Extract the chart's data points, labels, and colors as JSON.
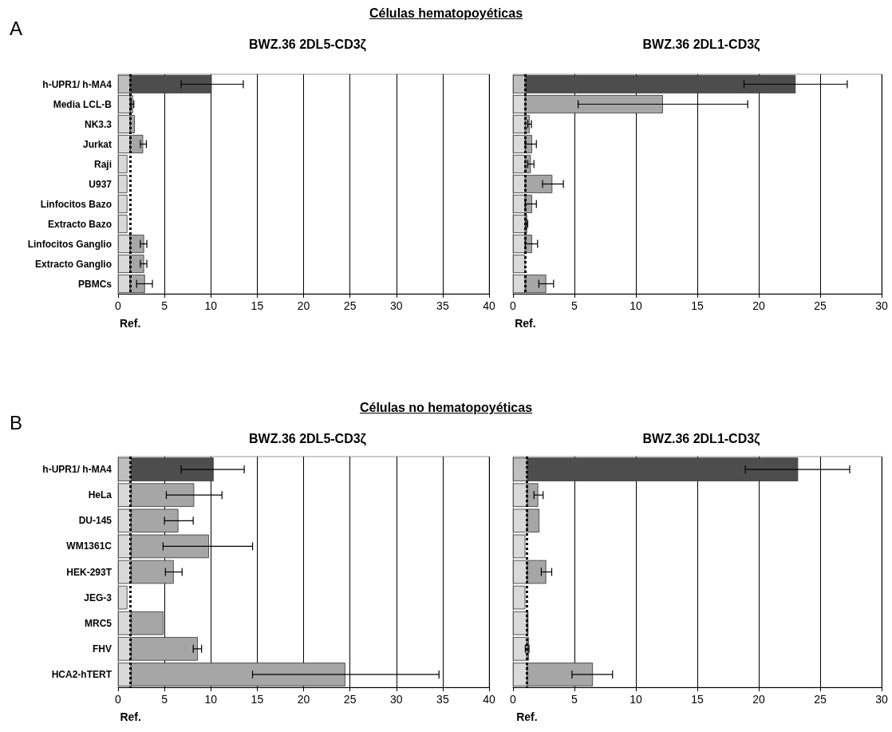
{
  "chart_data": [
    {
      "type": "bar",
      "orientation": "horizontal",
      "stacked": true,
      "title": "BWZ.36 2DL5-CD3ζ",
      "annotations": [
        "A",
        "Células hematopoyéticas"
      ],
      "categories": [
        "h-UPR1/ h-MA4",
        "Media LCL-B",
        "NK3.3",
        "Jurkat",
        "Raji",
        "U937",
        "Linfocitos Bazo",
        "Extracto Bazo",
        "Linfocitos Ganglio",
        "Extracto Ganglio",
        "PBMCs"
      ],
      "series": [
        {
          "colors": [
            "#bfbfbf",
            "#d9d9d9",
            "#d9d9d9",
            "#d9d9d9",
            "#d9d9d9",
            "#d9d9d9",
            "#d9d9d9",
            "#d9d9d9",
            "#d9d9d9",
            "#d9d9d9",
            "#d9d9d9"
          ],
          "values": [
            1.3,
            1.3,
            1.3,
            1.3,
            1.0,
            1.0,
            1.0,
            1.0,
            1.3,
            1.3,
            1.3
          ]
        },
        {
          "colors": [
            "#4d4d4d",
            "#a6a6a6",
            "#a6a6a6",
            "#a6a6a6",
            "#a6a6a6",
            "#a6a6a6",
            "#a6a6a6",
            "#a6a6a6",
            "#a6a6a6",
            "#a6a6a6",
            "#a6a6a6"
          ],
          "values": [
            8.8,
            0.3,
            0.5,
            1.4,
            null,
            null,
            null,
            null,
            1.5,
            1.5,
            1.6
          ],
          "errors": [
            [
              6.8,
              13.5
            ],
            [
              1.4,
              1.7
            ],
            null,
            [
              2.4,
              3.05
            ],
            null,
            null,
            null,
            null,
            [
              2.4,
              3.1
            ],
            [
              2.4,
              3.1
            ],
            [
              2.0,
              3.7
            ]
          ]
        }
      ],
      "xlim": [
        0,
        40
      ],
      "xticks": [
        0,
        5,
        10,
        15,
        20,
        25,
        30,
        35,
        40
      ],
      "grid": "x",
      "ref_lines": [
        {
          "axis": "x",
          "value": 1.3,
          "label": "Ref.",
          "line_style": "dotted",
          "color": "#000000"
        }
      ]
    },
    {
      "type": "bar",
      "orientation": "horizontal",
      "stacked": true,
      "title": "BWZ.36 2DL1-CD3ζ",
      "categories": [
        null,
        null,
        null,
        null,
        null,
        null,
        null,
        null,
        null,
        null,
        null
      ],
      "series": [
        {
          "colors": [
            "#bfbfbf",
            "#d9d9d9",
            "#d9d9d9",
            "#d9d9d9",
            "#d9d9d9",
            "#d9d9d9",
            "#d9d9d9",
            "#d9d9d9",
            "#d9d9d9",
            "#d9d9d9",
            "#d9d9d9"
          ],
          "values": [
            1.0,
            1.0,
            1.0,
            1.0,
            1.0,
            1.0,
            1.0,
            1.0,
            1.0,
            1.0,
            1.0
          ]
        },
        {
          "colors": [
            "#4d4d4d",
            "#a6a6a6",
            "#a6a6a6",
            "#a6a6a6",
            "#a6a6a6",
            "#a6a6a6",
            "#a6a6a6",
            "#a6a6a6",
            "#a6a6a6",
            "#a6a6a6",
            "#a6a6a6"
          ],
          "values": [
            22.0,
            11.2,
            0.35,
            0.55,
            0.45,
            2.2,
            0.55,
            0.15,
            0.55,
            null,
            1.7
          ],
          "errors": [
            [
              18.8,
              27.2
            ],
            [
              5.3,
              19.1
            ],
            [
              1.2,
              1.5
            ],
            [
              1.0,
              1.9
            ],
            [
              1.2,
              1.7
            ],
            [
              2.4,
              4.1
            ],
            [
              1.0,
              1.9
            ],
            [
              1.05,
              1.2
            ],
            [
              1.0,
              2.0
            ],
            null,
            [
              2.1,
              3.3
            ]
          ]
        }
      ],
      "xlim": [
        0,
        30
      ],
      "xticks": [
        0,
        5,
        10,
        15,
        20,
        25,
        30
      ],
      "grid": "x",
      "ref_lines": [
        {
          "axis": "x",
          "value": 1.0,
          "label": "Ref.",
          "line_style": "dotted",
          "color": "#000000"
        }
      ]
    },
    {
      "type": "bar",
      "orientation": "horizontal",
      "stacked": true,
      "title": "BWZ.36 2DL5-CD3ζ",
      "annotations": [
        "B",
        "Células no hematopoyéticas"
      ],
      "categories": [
        "h-UPR1/ h-MA4",
        "HeLa",
        "DU-145",
        "WM1361C",
        "HEK-293T",
        "JEG-3",
        "MRC5",
        "FHV",
        "HCA2-hTERT"
      ],
      "series": [
        {
          "colors": [
            "#bfbfbf",
            "#d9d9d9",
            "#d9d9d9",
            "#d9d9d9",
            "#d9d9d9",
            "#d9d9d9",
            "#d9d9d9",
            "#d9d9d9",
            "#d9d9d9"
          ],
          "values": [
            1.4,
            1.4,
            1.4,
            1.4,
            1.4,
            1.0,
            1.4,
            1.4,
            1.4
          ]
        },
        {
          "colors": [
            "#4d4d4d",
            "#a6a6a6",
            "#a6a6a6",
            "#a6a6a6",
            "#a6a6a6",
            "#a6a6a6",
            "#a6a6a6",
            "#a6a6a6",
            "#a6a6a6"
          ],
          "values": [
            8.9,
            6.8,
            5.1,
            8.4,
            4.6,
            null,
            3.5,
            7.2,
            23.1
          ],
          "errors": [
            [
              6.8,
              13.6
            ],
            [
              5.2,
              11.2
            ],
            [
              5.0,
              8.1
            ],
            [
              4.85,
              14.5
            ],
            [
              5.1,
              6.9
            ],
            null,
            null,
            [
              8.1,
              9.0
            ],
            [
              14.5,
              34.6
            ]
          ]
        }
      ],
      "xlim": [
        0,
        40
      ],
      "xticks": [
        0,
        5,
        10,
        15,
        20,
        25,
        30,
        35,
        40
      ],
      "grid": "x",
      "ref_lines": [
        {
          "axis": "x",
          "value": 1.35,
          "label": "Ref.",
          "line_style": "dotted",
          "color": "#000000"
        }
      ]
    },
    {
      "type": "bar",
      "orientation": "horizontal",
      "stacked": true,
      "title": "BWZ.36 2DL1-CD3ζ",
      "categories": [
        null,
        null,
        null,
        null,
        null,
        null,
        null,
        null,
        null
      ],
      "series": [
        {
          "colors": [
            "#bfbfbf",
            "#d9d9d9",
            "#d9d9d9",
            "#d9d9d9",
            "#d9d9d9",
            "#d9d9d9",
            "#d9d9d9",
            "#d9d9d9",
            "#d9d9d9"
          ],
          "values": [
            1.15,
            1.15,
            1.15,
            1.0,
            1.15,
            1.0,
            1.15,
            1.15,
            1.15
          ]
        },
        {
          "colors": [
            "#4d4d4d",
            "#a6a6a6",
            "#a6a6a6",
            "#a6a6a6",
            "#a6a6a6",
            "#a6a6a6",
            "#a6a6a6",
            "#a6a6a6",
            "#a6a6a6"
          ],
          "values": [
            22.05,
            0.9,
            1.0,
            null,
            1.55,
            null,
            0.1,
            0.15,
            5.35
          ],
          "errors": [
            [
              18.9,
              27.4
            ],
            [
              1.7,
              2.45
            ],
            null,
            null,
            [
              2.3,
              3.15
            ],
            null,
            null,
            [
              1.0,
              1.3
            ],
            [
              4.8,
              8.1
            ]
          ]
        }
      ],
      "xlim": [
        0,
        30
      ],
      "xticks": [
        0,
        5,
        10,
        15,
        20,
        25,
        30
      ],
      "grid": "x",
      "ref_lines": [
        {
          "axis": "x",
          "value": 1.13,
          "label": "Ref.",
          "line_style": "dotted",
          "color": "#000000"
        }
      ]
    }
  ]
}
